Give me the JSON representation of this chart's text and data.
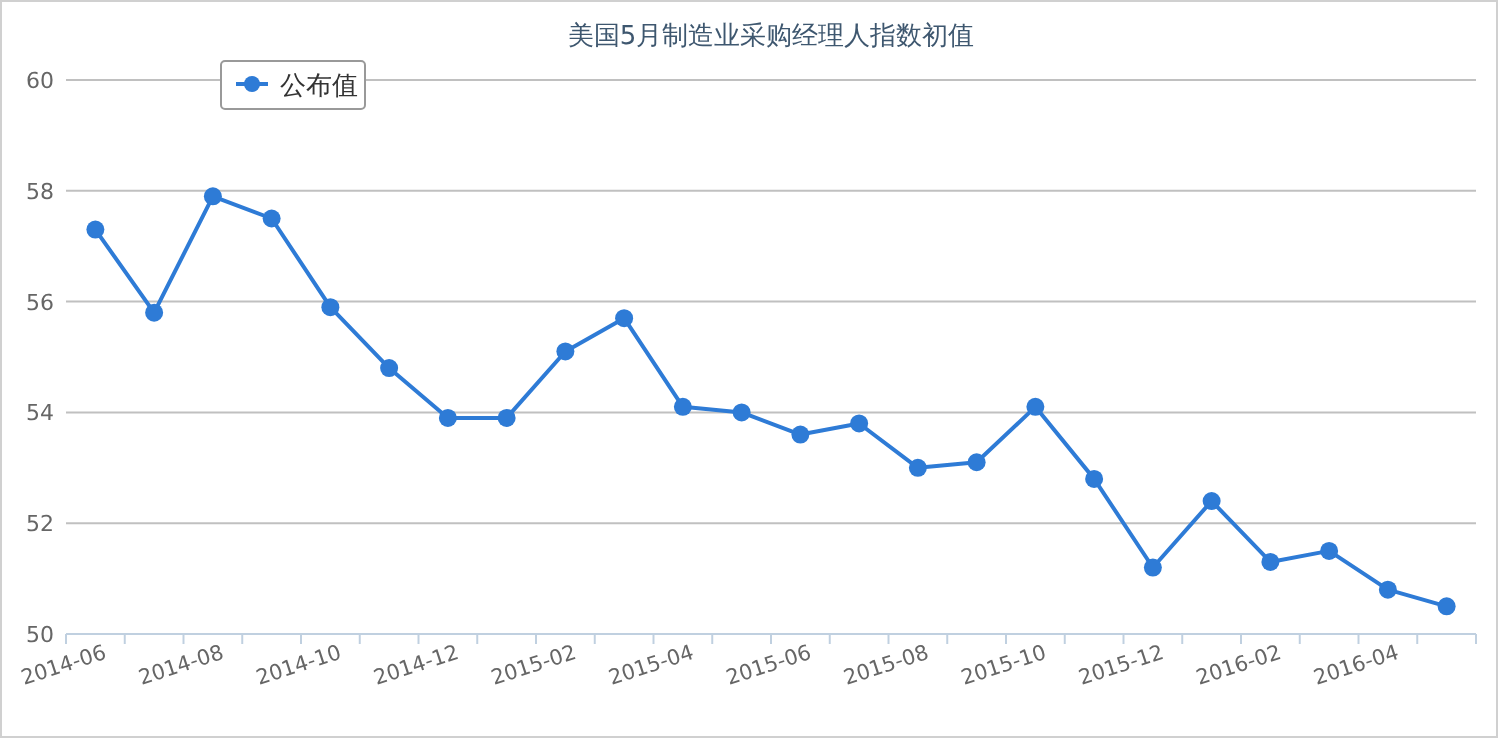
{
  "chart_data": {
    "type": "line",
    "title": "美国5月制造业采购经理人指数初值",
    "categories": [
      "2014-06",
      null,
      "2014-08",
      null,
      "2014-10",
      null,
      "2014-12",
      null,
      "2015-02",
      null,
      "2015-04",
      null,
      "2015-06",
      null,
      "2015-08",
      null,
      "2015-10",
      null,
      "2015-12",
      null,
      "2016-02",
      null,
      "2016-04",
      null
    ],
    "series": [
      {
        "name": "公布值",
        "color": "#2e7bd6",
        "values": [
          57.3,
          55.8,
          57.9,
          57.5,
          55.9,
          54.8,
          53.9,
          53.9,
          55.1,
          55.7,
          54.1,
          54.0,
          53.6,
          53.8,
          53.0,
          53.1,
          54.1,
          52.8,
          51.2,
          52.4,
          51.3,
          51.5,
          50.8,
          50.5
        ]
      }
    ],
    "ylim": [
      50,
      60
    ],
    "yticks": [
      50,
      52,
      54,
      56,
      58,
      60
    ],
    "grid": "y",
    "legend": "top left",
    "marker": "circle",
    "line_style": "solid"
  }
}
